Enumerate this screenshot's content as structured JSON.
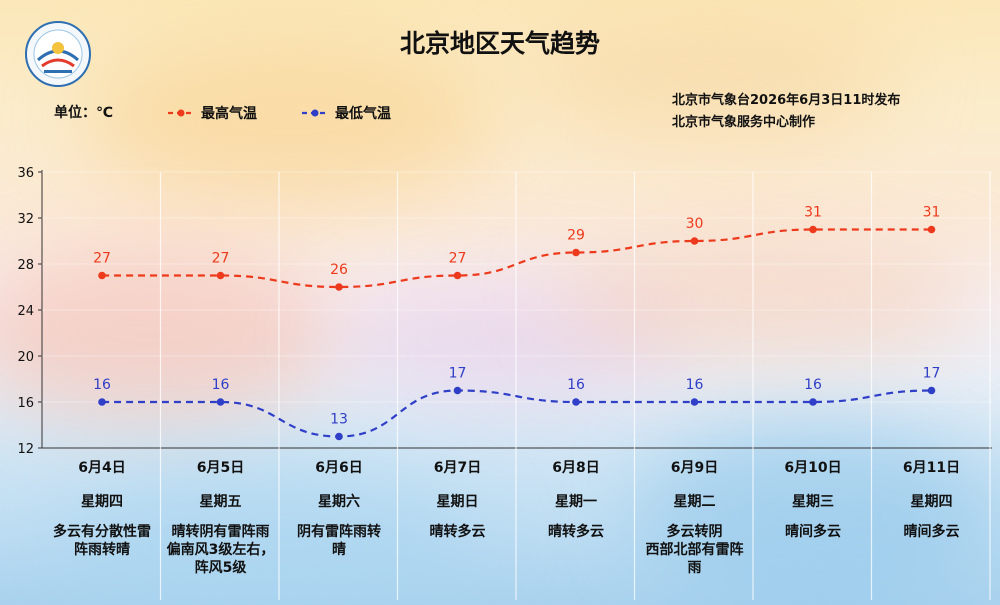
{
  "header": {
    "title": "北京地区天气趋势",
    "unit": "单位：℃",
    "publish": "北京市气象台2026年6月3日11时发布",
    "producer": "北京市气象服务中心制作",
    "logo_text": "METEOROLOGICAL SERVICE"
  },
  "colors": {
    "high": "#ee3a1c",
    "low": "#2f3fc7",
    "axis": "#333333"
  },
  "chart_data": {
    "type": "line",
    "ylim": [
      12,
      36
    ],
    "yticks": [
      12,
      16,
      20,
      24,
      28,
      32,
      36
    ],
    "x": [
      "6月4日",
      "6月5日",
      "6月6日",
      "6月7日",
      "6月8日",
      "6月9日",
      "6月10日",
      "6月11日"
    ],
    "weekdays": [
      "星期四",
      "星期五",
      "星期六",
      "星期日",
      "星期一",
      "星期二",
      "星期三",
      "星期四"
    ],
    "conditions": [
      [
        "多云有分散性雷",
        "阵雨转晴"
      ],
      [
        "晴转阴有雷阵雨",
        "偏南风3级左右，",
        "阵风5级"
      ],
      [
        "阴有雷阵雨转",
        "晴"
      ],
      [
        "晴转多云"
      ],
      [
        "晴转多云"
      ],
      [
        "多云转阴",
        "西部北部有雷阵",
        "雨"
      ],
      [
        "晴间多云"
      ],
      [
        "晴间多云"
      ]
    ],
    "series": [
      {
        "name": "最高气温",
        "values": [
          27,
          27,
          26,
          27,
          29,
          30,
          31,
          31
        ]
      },
      {
        "name": "最低气温",
        "values": [
          16,
          16,
          13,
          17,
          16,
          16,
          16,
          17
        ]
      }
    ],
    "legend": "top-left",
    "grid": true
  }
}
